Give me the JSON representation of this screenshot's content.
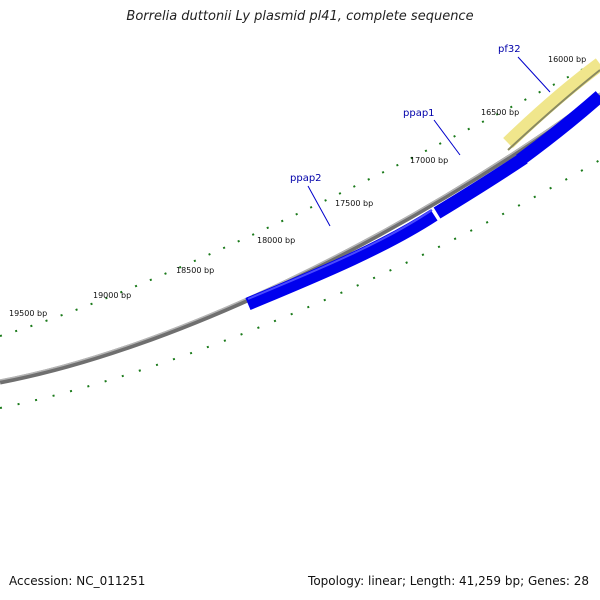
{
  "title": "Borrelia duttonii Ly plasmid pl41, complete sequence",
  "accession": "Accession: NC_011251",
  "summary": "Topology: linear; Length: 41,259 bp; Genes: 28",
  "ticks": [
    "16000 bp",
    "16500 bp",
    "17000 bp",
    "17500 bp",
    "18000 bp",
    "18500 bp",
    "19000 bp",
    "19500 bp"
  ],
  "genes": [
    {
      "name": "pf32",
      "color": "#f0e68c"
    },
    {
      "name": "ppap1",
      "color": "#0000ee"
    },
    {
      "name": "ppap2",
      "color": "#0000ee"
    }
  ],
  "colors": {
    "tick": "#1a7a1a",
    "backbone": "#888888",
    "label": "#0000aa"
  }
}
